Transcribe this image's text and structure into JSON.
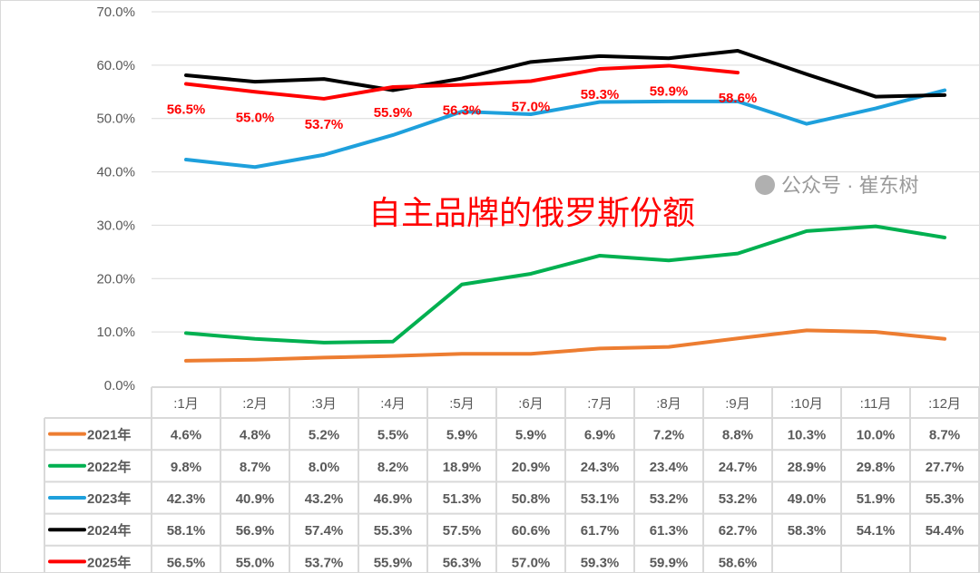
{
  "chart_data": {
    "type": "line",
    "title": "自主品牌的俄罗斯份额",
    "categories": [
      ":1月",
      ":2月",
      ":3月",
      ":4月",
      ":5月",
      ":6月",
      ":7月",
      ":8月",
      ":9月",
      ":10月",
      ":11月",
      ":12月"
    ],
    "ylim": [
      0,
      70
    ],
    "yticks": [
      "0.0%",
      "10.0%",
      "20.0%",
      "30.0%",
      "40.0%",
      "50.0%",
      "60.0%",
      "70.0%"
    ],
    "grid": true,
    "legend": "data-table-left",
    "data_labels_series": "2025年",
    "series": [
      {
        "name": "2021年",
        "color": "#ed7d31",
        "values": [
          4.6,
          4.8,
          5.2,
          5.5,
          5.9,
          5.9,
          6.9,
          7.2,
          8.8,
          10.3,
          10.0,
          8.7
        ]
      },
      {
        "name": "2022年",
        "color": "#00b050",
        "values": [
          9.8,
          8.7,
          8.0,
          8.2,
          18.9,
          20.9,
          24.3,
          23.4,
          24.7,
          28.9,
          29.8,
          27.7
        ]
      },
      {
        "name": "2023年",
        "color": "#1ea0dc",
        "values": [
          42.3,
          40.9,
          43.2,
          46.9,
          51.3,
          50.8,
          53.1,
          53.2,
          53.2,
          49.0,
          51.9,
          55.3
        ]
      },
      {
        "name": "2024年",
        "color": "#000000",
        "values": [
          58.1,
          56.9,
          57.4,
          55.3,
          57.5,
          60.6,
          61.7,
          61.3,
          62.7,
          58.3,
          54.1,
          54.4
        ]
      },
      {
        "name": "2025年",
        "color": "#ff0000",
        "values": [
          56.5,
          55.0,
          53.7,
          55.9,
          56.3,
          57.0,
          59.3,
          59.9,
          58.6,
          null,
          null,
          null
        ]
      }
    ]
  },
  "watermark": "公众号 · 崔东树"
}
